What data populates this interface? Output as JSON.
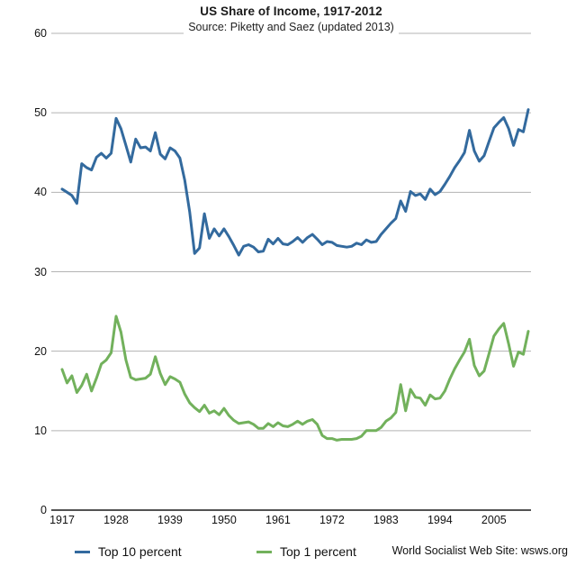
{
  "header": {
    "title": "US Share of Income, 1917-2012",
    "subtitle": "Source: Piketty and Saez (updated 2013)"
  },
  "footer": {
    "credit": "World Socialist Web Site: wsws.org"
  },
  "colors": {
    "top10_line": "#336a9e",
    "top1_line": "#72b15c",
    "gridline": "#b3b3b3",
    "axis_line": "#1a1a1a",
    "text": "#1a1a1a"
  },
  "chart_data": {
    "type": "line",
    "title": "US Share of Income, 1917-2012",
    "subtitle": "Source: Piketty and Saez (updated 2013)",
    "xlabel": "",
    "ylabel": "",
    "x_start": 1917,
    "x_end": 2012,
    "ylim": [
      0,
      60
    ],
    "y_ticks": [
      0,
      10,
      20,
      30,
      40,
      50,
      60
    ],
    "x_tick_years": [
      1917,
      1928,
      1939,
      1950,
      1961,
      1972,
      1983,
      1994,
      2005
    ],
    "grid": true,
    "legend_position": "bottom",
    "series": [
      {
        "name": "Top 10 percent",
        "color": "#336a9e",
        "values": [
          40.4,
          40.0,
          39.6,
          38.6,
          43.6,
          43.1,
          42.8,
          44.4,
          44.9,
          44.3,
          44.9,
          49.3,
          48.0,
          45.9,
          43.8,
          46.7,
          45.6,
          45.7,
          45.2,
          47.5,
          44.8,
          44.2,
          45.6,
          45.2,
          44.3,
          41.5,
          37.5,
          32.3,
          33.0,
          37.3,
          34.2,
          35.4,
          34.5,
          35.4,
          34.4,
          33.3,
          32.1,
          33.2,
          33.4,
          33.1,
          32.5,
          32.6,
          34.1,
          33.5,
          34.2,
          33.5,
          33.4,
          33.8,
          34.3,
          33.7,
          34.3,
          34.7,
          34.1,
          33.4,
          33.8,
          33.7,
          33.3,
          33.2,
          33.1,
          33.2,
          33.6,
          33.4,
          34.0,
          33.7,
          33.8,
          34.7,
          35.4,
          36.1,
          36.7,
          38.9,
          37.6,
          40.1,
          39.6,
          39.8,
          39.1,
          40.4,
          39.7,
          40.1,
          41.0,
          42.0,
          43.1,
          44.0,
          45.0,
          47.8,
          45.2,
          43.9,
          44.6,
          46.4,
          48.1,
          48.8,
          49.4,
          48.0,
          45.9,
          47.9,
          47.6,
          50.4
        ]
      },
      {
        "name": "Top 1 percent",
        "color": "#72b15c",
        "values": [
          17.7,
          16.0,
          16.9,
          14.8,
          15.7,
          17.1,
          15.0,
          16.6,
          18.4,
          18.9,
          19.8,
          24.4,
          22.4,
          18.9,
          16.7,
          16.4,
          16.5,
          16.6,
          17.1,
          19.3,
          17.2,
          15.8,
          16.8,
          16.5,
          16.1,
          14.6,
          13.5,
          12.9,
          12.4,
          13.2,
          12.2,
          12.5,
          12.0,
          12.8,
          11.9,
          11.3,
          10.9,
          11.0,
          11.1,
          10.8,
          10.3,
          10.3,
          10.9,
          10.5,
          11.0,
          10.6,
          10.5,
          10.8,
          11.2,
          10.8,
          11.2,
          11.4,
          10.8,
          9.4,
          9.0,
          9.0,
          8.8,
          8.9,
          8.9,
          8.9,
          9.0,
          9.3,
          10.0,
          10.0,
          10.0,
          10.4,
          11.2,
          11.6,
          12.3,
          15.8,
          12.5,
          15.2,
          14.2,
          14.1,
          13.2,
          14.5,
          14.0,
          14.1,
          15.0,
          16.5,
          17.8,
          18.9,
          19.9,
          21.5,
          18.2,
          16.9,
          17.5,
          19.7,
          21.9,
          22.8,
          23.5,
          20.9,
          18.1,
          19.9,
          19.6,
          22.5
        ]
      }
    ]
  }
}
